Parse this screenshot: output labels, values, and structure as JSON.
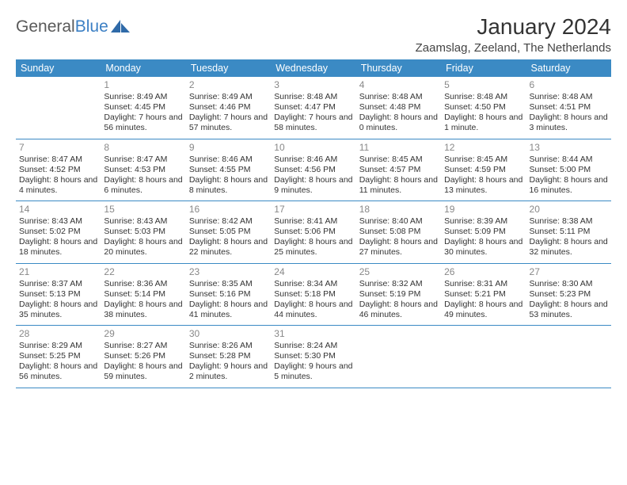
{
  "logo": {
    "word1": "General",
    "word2": "Blue"
  },
  "title": "January 2024",
  "location": "Zaamslag, Zeeland, The Netherlands",
  "colors": {
    "header_bg": "#3b8ac4",
    "header_text": "#ffffff",
    "daynum": "#888888",
    "body_text": "#333333",
    "rule": "#3b8ac4",
    "logo_gray": "#5a5a5a",
    "logo_blue": "#3b7fc4"
  },
  "typography": {
    "title_fontsize": 28,
    "location_fontsize": 15,
    "weekday_fontsize": 12.5,
    "cell_fontsize": 10.5,
    "daynum_fontsize": 12
  },
  "weekdays": [
    "Sunday",
    "Monday",
    "Tuesday",
    "Wednesday",
    "Thursday",
    "Friday",
    "Saturday"
  ],
  "weeks": [
    [
      null,
      {
        "n": "1",
        "sunrise": "8:49 AM",
        "sunset": "4:45 PM",
        "daylight": "7 hours and 56 minutes."
      },
      {
        "n": "2",
        "sunrise": "8:49 AM",
        "sunset": "4:46 PM",
        "daylight": "7 hours and 57 minutes."
      },
      {
        "n": "3",
        "sunrise": "8:48 AM",
        "sunset": "4:47 PM",
        "daylight": "7 hours and 58 minutes."
      },
      {
        "n": "4",
        "sunrise": "8:48 AM",
        "sunset": "4:48 PM",
        "daylight": "8 hours and 0 minutes."
      },
      {
        "n": "5",
        "sunrise": "8:48 AM",
        "sunset": "4:50 PM",
        "daylight": "8 hours and 1 minute."
      },
      {
        "n": "6",
        "sunrise": "8:48 AM",
        "sunset": "4:51 PM",
        "daylight": "8 hours and 3 minutes."
      }
    ],
    [
      {
        "n": "7",
        "sunrise": "8:47 AM",
        "sunset": "4:52 PM",
        "daylight": "8 hours and 4 minutes."
      },
      {
        "n": "8",
        "sunrise": "8:47 AM",
        "sunset": "4:53 PM",
        "daylight": "8 hours and 6 minutes."
      },
      {
        "n": "9",
        "sunrise": "8:46 AM",
        "sunset": "4:55 PM",
        "daylight": "8 hours and 8 minutes."
      },
      {
        "n": "10",
        "sunrise": "8:46 AM",
        "sunset": "4:56 PM",
        "daylight": "8 hours and 9 minutes."
      },
      {
        "n": "11",
        "sunrise": "8:45 AM",
        "sunset": "4:57 PM",
        "daylight": "8 hours and 11 minutes."
      },
      {
        "n": "12",
        "sunrise": "8:45 AM",
        "sunset": "4:59 PM",
        "daylight": "8 hours and 13 minutes."
      },
      {
        "n": "13",
        "sunrise": "8:44 AM",
        "sunset": "5:00 PM",
        "daylight": "8 hours and 16 minutes."
      }
    ],
    [
      {
        "n": "14",
        "sunrise": "8:43 AM",
        "sunset": "5:02 PM",
        "daylight": "8 hours and 18 minutes."
      },
      {
        "n": "15",
        "sunrise": "8:43 AM",
        "sunset": "5:03 PM",
        "daylight": "8 hours and 20 minutes."
      },
      {
        "n": "16",
        "sunrise": "8:42 AM",
        "sunset": "5:05 PM",
        "daylight": "8 hours and 22 minutes."
      },
      {
        "n": "17",
        "sunrise": "8:41 AM",
        "sunset": "5:06 PM",
        "daylight": "8 hours and 25 minutes."
      },
      {
        "n": "18",
        "sunrise": "8:40 AM",
        "sunset": "5:08 PM",
        "daylight": "8 hours and 27 minutes."
      },
      {
        "n": "19",
        "sunrise": "8:39 AM",
        "sunset": "5:09 PM",
        "daylight": "8 hours and 30 minutes."
      },
      {
        "n": "20",
        "sunrise": "8:38 AM",
        "sunset": "5:11 PM",
        "daylight": "8 hours and 32 minutes."
      }
    ],
    [
      {
        "n": "21",
        "sunrise": "8:37 AM",
        "sunset": "5:13 PM",
        "daylight": "8 hours and 35 minutes."
      },
      {
        "n": "22",
        "sunrise": "8:36 AM",
        "sunset": "5:14 PM",
        "daylight": "8 hours and 38 minutes."
      },
      {
        "n": "23",
        "sunrise": "8:35 AM",
        "sunset": "5:16 PM",
        "daylight": "8 hours and 41 minutes."
      },
      {
        "n": "24",
        "sunrise": "8:34 AM",
        "sunset": "5:18 PM",
        "daylight": "8 hours and 44 minutes."
      },
      {
        "n": "25",
        "sunrise": "8:32 AM",
        "sunset": "5:19 PM",
        "daylight": "8 hours and 46 minutes."
      },
      {
        "n": "26",
        "sunrise": "8:31 AM",
        "sunset": "5:21 PM",
        "daylight": "8 hours and 49 minutes."
      },
      {
        "n": "27",
        "sunrise": "8:30 AM",
        "sunset": "5:23 PM",
        "daylight": "8 hours and 53 minutes."
      }
    ],
    [
      {
        "n": "28",
        "sunrise": "8:29 AM",
        "sunset": "5:25 PM",
        "daylight": "8 hours and 56 minutes."
      },
      {
        "n": "29",
        "sunrise": "8:27 AM",
        "sunset": "5:26 PM",
        "daylight": "8 hours and 59 minutes."
      },
      {
        "n": "30",
        "sunrise": "8:26 AM",
        "sunset": "5:28 PM",
        "daylight": "9 hours and 2 minutes."
      },
      {
        "n": "31",
        "sunrise": "8:24 AM",
        "sunset": "5:30 PM",
        "daylight": "9 hours and 5 minutes."
      },
      null,
      null,
      null
    ]
  ],
  "labels": {
    "sunrise": "Sunrise:",
    "sunset": "Sunset:",
    "daylight": "Daylight:"
  }
}
